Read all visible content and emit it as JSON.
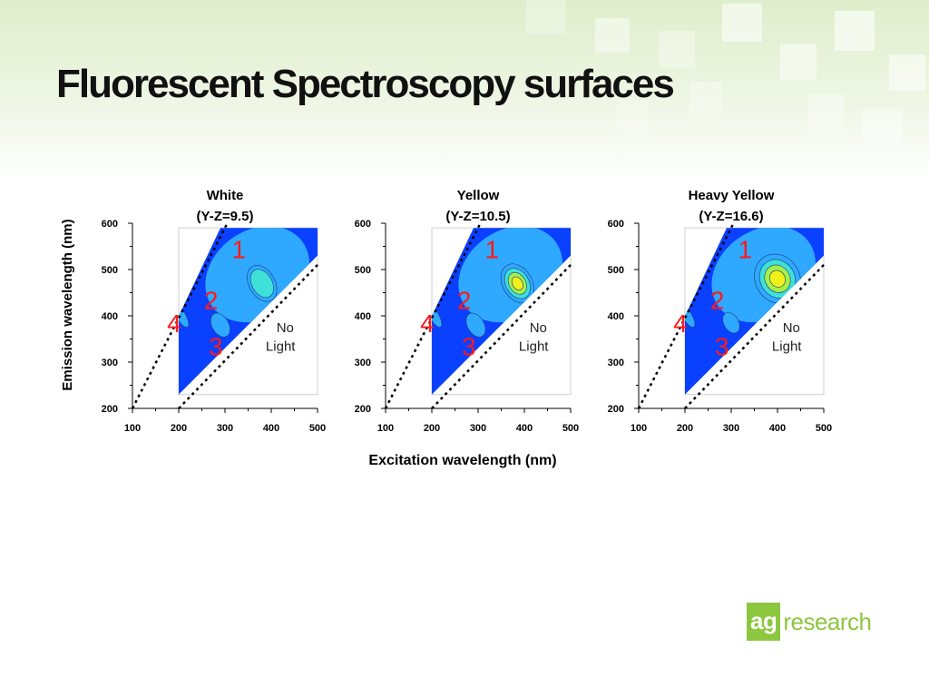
{
  "slide": {
    "title": "Fluorescent Spectroscopy surfaces"
  },
  "logo": {
    "ag": "ag",
    "rest": "research",
    "color": "#8dc63f"
  },
  "chart_data": {
    "type": "heatmap",
    "xlabel": "Excitation wavelength (nm)",
    "ylabel": "Emission wavelength (nm)",
    "xlim": [
      100,
      500
    ],
    "ylim": [
      200,
      600
    ],
    "xticks": [
      100,
      200,
      300,
      400,
      500
    ],
    "yticks": [
      200,
      300,
      400,
      500,
      600
    ],
    "region_labels": {
      "peak_1": "1",
      "peak_2": "2",
      "peak_3": "3",
      "peak_4": "4",
      "no_light": [
        "No",
        "Light"
      ]
    },
    "colors": {
      "background": "#0a40ff",
      "level_1": "#2fa8ff",
      "level_2": "#3fe0d8",
      "level_3": "#a6f04a",
      "level_4": "#f0f01a",
      "peak_labels": "#ff1a1a"
    },
    "panels": [
      {
        "title": "White",
        "subtitle": "(Y-Z=9.5)",
        "yz": 9.5,
        "peaks": [
          {
            "ex": 380,
            "em": 470,
            "rx": 28,
            "ry": 42,
            "max_level": 2
          },
          {
            "ex": 290,
            "em": 380,
            "rx": 18,
            "ry": 28,
            "max_level": 1
          },
          {
            "ex": 205,
            "em": 400,
            "rx": 10,
            "ry": 28,
            "max_level": 1
          }
        ]
      },
      {
        "title": "Yellow",
        "subtitle": "(Y-Z=10.5)",
        "yz": 10.5,
        "peaks": [
          {
            "ex": 385,
            "em": 470,
            "rx": 32,
            "ry": 45,
            "max_level": 4
          },
          {
            "ex": 295,
            "em": 380,
            "rx": 18,
            "ry": 28,
            "max_level": 1
          },
          {
            "ex": 205,
            "em": 400,
            "rx": 10,
            "ry": 28,
            "max_level": 1
          }
        ]
      },
      {
        "title": "Heavy Yellow",
        "subtitle": "(Y-Z=16.6)",
        "yz": 16.6,
        "peaks": [
          {
            "ex": 400,
            "em": 480,
            "rx": 48,
            "ry": 55,
            "max_level": 4
          },
          {
            "ex": 300,
            "em": 385,
            "rx": 16,
            "ry": 24,
            "max_level": 1
          },
          {
            "ex": 205,
            "em": 400,
            "rx": 10,
            "ry": 28,
            "max_level": 1
          }
        ]
      }
    ]
  }
}
